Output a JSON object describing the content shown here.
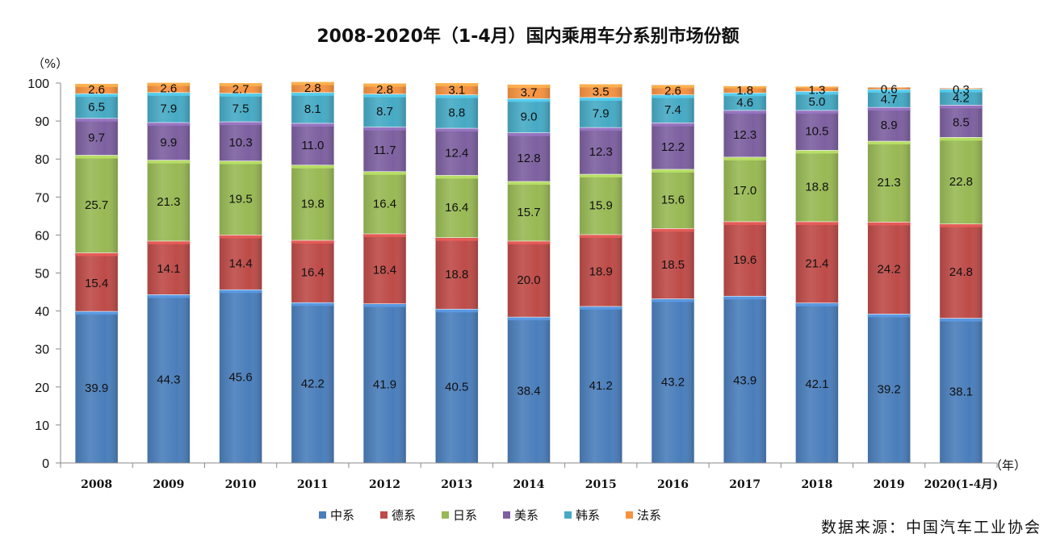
{
  "chart_data": {
    "type": "bar",
    "stacked": true,
    "title": "2008-2020年（1-4月）国内乘用车分系别市场份额",
    "y_unit_label": "（%）",
    "x_unit_label": "（年）",
    "ylim": [
      0,
      100
    ],
    "y_ticks": [
      0,
      10,
      20,
      30,
      40,
      50,
      60,
      70,
      80,
      90,
      100
    ],
    "categories": [
      "2008",
      "2009",
      "2010",
      "2011",
      "2012",
      "2013",
      "2014",
      "2015",
      "2016",
      "2017",
      "2018",
      "2019",
      "2020(1-4月)"
    ],
    "series": [
      {
        "name": "中系",
        "color": "#4A7EBB",
        "values": [
          39.9,
          44.3,
          45.6,
          42.2,
          41.9,
          40.5,
          38.4,
          41.2,
          43.2,
          43.9,
          42.1,
          39.2,
          38.1
        ],
        "labels": [
          "39.9",
          "44.3",
          "45.6",
          "42.2",
          "41.9",
          "40.5",
          "38.4",
          "41.2",
          "43.2",
          "43.9",
          "42.1",
          "39.2",
          "38.1"
        ]
      },
      {
        "name": "德系",
        "color": "#BE4B48",
        "values": [
          15.4,
          14.1,
          14.4,
          16.4,
          18.4,
          18.8,
          20.0,
          18.9,
          18.5,
          19.6,
          21.4,
          24.2,
          24.8
        ],
        "labels": [
          "15.4",
          "14.1",
          "14.4",
          "16.4",
          "18.4",
          "18.8",
          "20.0",
          "18.9",
          "18.5",
          "19.6",
          "21.4",
          "24.2",
          "24.8"
        ]
      },
      {
        "name": "日系",
        "color": "#98B954",
        "values": [
          25.7,
          21.3,
          19.5,
          19.8,
          16.4,
          16.4,
          15.7,
          15.9,
          15.6,
          17.0,
          18.8,
          21.3,
          22.8
        ],
        "labels": [
          "25.7",
          "21.3",
          "19.5",
          "19.8",
          "16.4",
          "16.4",
          "15.7",
          "15.9",
          "15.6",
          "17.0",
          "18.8",
          "21.3",
          "22.8"
        ]
      },
      {
        "name": "美系",
        "color": "#7D60A0",
        "values": [
          9.7,
          9.9,
          10.3,
          11.0,
          11.7,
          12.4,
          12.8,
          12.3,
          12.2,
          12.3,
          10.5,
          8.9,
          8.5
        ],
        "labels": [
          "9.7",
          "9.9",
          "10.3",
          "11.0",
          "11.7",
          "12.4",
          "12.8",
          "12.3",
          "12.2",
          "12.3",
          "10.5",
          "8.9",
          "8.5"
        ]
      },
      {
        "name": "韩系",
        "color": "#46AAC5",
        "values": [
          6.5,
          7.9,
          7.5,
          8.1,
          8.7,
          8.8,
          9.0,
          7.9,
          7.4,
          4.6,
          5.0,
          4.7,
          4.2
        ],
        "labels": [
          "6.5",
          "7.9",
          "7.5",
          "8.1",
          "8.7",
          "8.8",
          "9.0",
          "7.9",
          "7.4",
          "4.6",
          "5.0",
          "4.7",
          "4.2"
        ]
      },
      {
        "name": "法系",
        "color": "#F69240",
        "values": [
          2.6,
          2.6,
          2.7,
          2.8,
          2.8,
          3.1,
          3.7,
          3.5,
          2.6,
          1.8,
          1.3,
          0.6,
          0.3
        ],
        "labels": [
          "2.6",
          "2.6",
          "2.7",
          "2.8",
          "2.8",
          "3.1",
          "3.7",
          "3.5",
          "2.6",
          "1.8",
          "1.3",
          "0.6",
          "0.3"
        ]
      }
    ],
    "legend_position": "bottom-center",
    "grid": false
  },
  "source": "数据来源：中国汽车工业协会"
}
